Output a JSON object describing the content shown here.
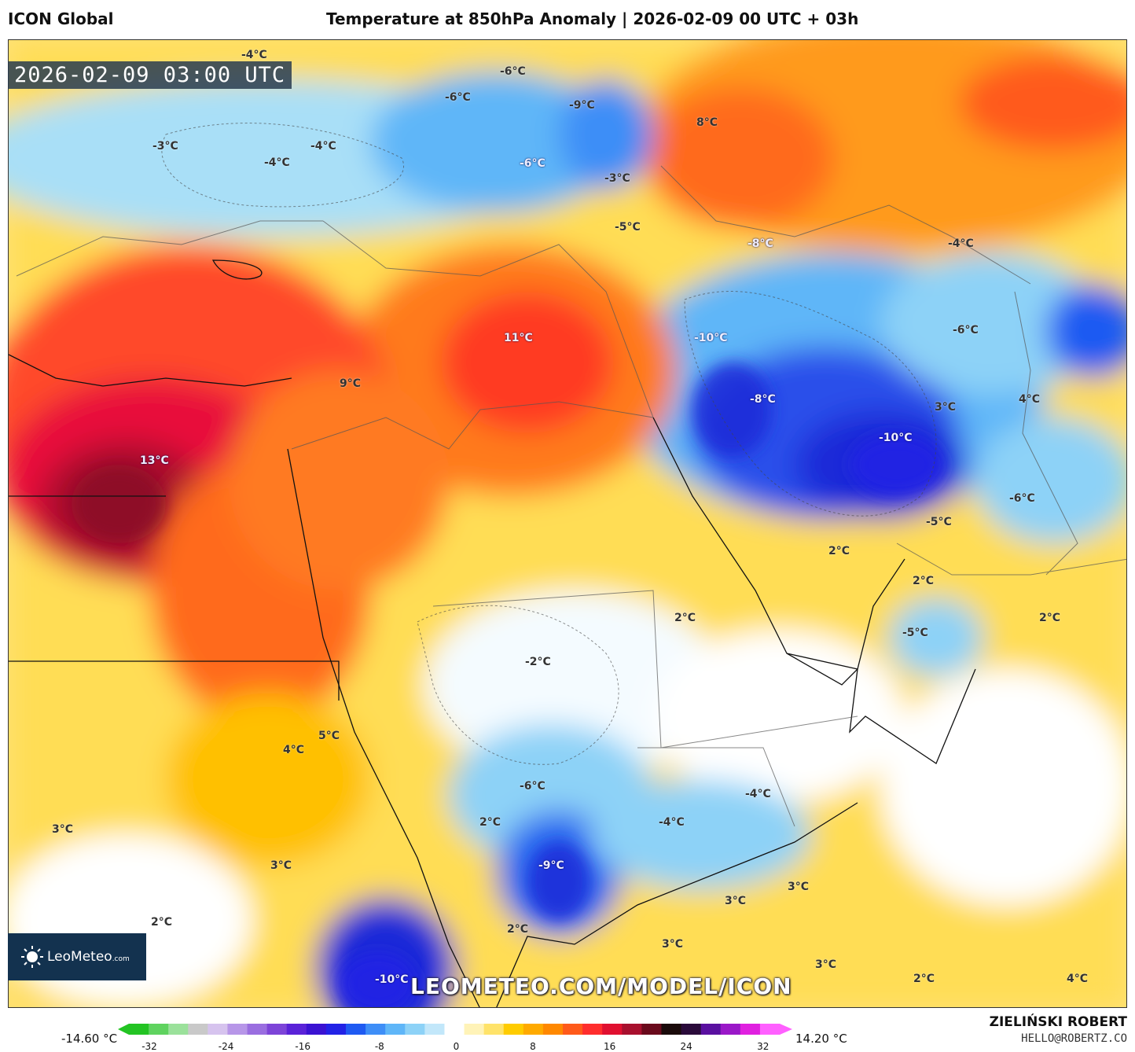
{
  "header": {
    "model": "ICON Global",
    "title": "Temperature at 850hPa Anomaly | 2026-02-09 00 UTC + 03h"
  },
  "map": {
    "valid_time": "2026-02-09 03:00 UTC",
    "watermark": "LEOMETEO.COM/MODEL/ICON",
    "logo": {
      "name": "LeoMeteo",
      "suffix": ".com"
    },
    "labels": [
      "-4°C",
      "-6°C",
      "-6°C",
      "-9°C",
      "8°C",
      "-3°C",
      "-4°C",
      "-4°C",
      "-6°C",
      "-3°C",
      "-5°C",
      "-8°C",
      "-4°C",
      "-10°C",
      "-6°C",
      "11°C",
      "9°C",
      "-8°C",
      "3°C",
      "4°C",
      "-10°C",
      "13°C",
      "-6°C",
      "-5°C",
      "2°C",
      "2°C",
      "2°C",
      "2°C",
      "-5°C",
      "-2°C",
      "5°C",
      "4°C",
      "-6°C",
      "-4°C",
      "3°C",
      "2°C",
      "-4°C",
      "3°C",
      "3°C",
      "3°C",
      "2°C",
      "2°C",
      "3°C",
      "3°C",
      "-9°C",
      "-10°C",
      "2°C",
      "4°C"
    ]
  },
  "colorbar": {
    "min_label": "-14.60 °C",
    "max_label": "14.20 °C",
    "ticks": [
      "-32",
      "-24",
      "-16",
      "-8",
      "0",
      "8",
      "16",
      "24",
      "32"
    ],
    "colors": [
      "#23c423",
      "#5fd35f",
      "#9be19b",
      "#c9c9c9",
      "#d6c3ee",
      "#b796e8",
      "#9a6ee0",
      "#7d44d8",
      "#5a22d8",
      "#3a12d2",
      "#2222e6",
      "#1f5af2",
      "#3e8ef7",
      "#5fb6f8",
      "#8dd2f7",
      "#c2e7fa",
      "#ffffff",
      "#fff3b8",
      "#ffe36a",
      "#ffcc00",
      "#ffaa00",
      "#ff8800",
      "#ff5a1a",
      "#ff2d2d",
      "#e01030",
      "#a8102e",
      "#6a0a1c",
      "#1a0a0a",
      "#2a0a3a",
      "#5a10a0",
      "#9a18c8",
      "#e020e0",
      "#ff60ff"
    ]
  },
  "credit": {
    "name": "ZIELIŃSKI ROBERT",
    "email": "HELLO@ROBERTZ.CO"
  }
}
